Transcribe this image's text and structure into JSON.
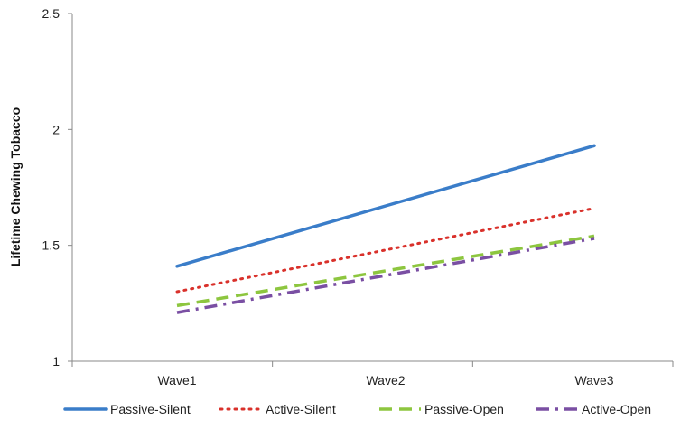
{
  "chart_data": {
    "type": "line",
    "title": "",
    "xlabel": "",
    "ylabel": "Lifetime Chewing Tobacco",
    "categories": [
      "Wave1",
      "Wave2",
      "Wave3"
    ],
    "ylim": [
      1,
      2.5
    ],
    "yticks": [
      "1",
      "1.5",
      "2",
      "2.5"
    ],
    "grid": false,
    "legend_position": "bottom",
    "series": [
      {
        "name": "Passive-Silent",
        "values": [
          1.41,
          1.67,
          1.93
        ],
        "color": "#3a7dc9",
        "dash": "solid"
      },
      {
        "name": "Active-Silent",
        "values": [
          1.3,
          1.48,
          1.66
        ],
        "color": "#d9312b",
        "dash": "dotted"
      },
      {
        "name": "Passive-Open",
        "values": [
          1.24,
          1.39,
          1.54
        ],
        "color": "#8dc63f",
        "dash": "dashed"
      },
      {
        "name": "Active-Open",
        "values": [
          1.21,
          1.37,
          1.53
        ],
        "color": "#7a4fa3",
        "dash": "dashdot"
      }
    ]
  }
}
